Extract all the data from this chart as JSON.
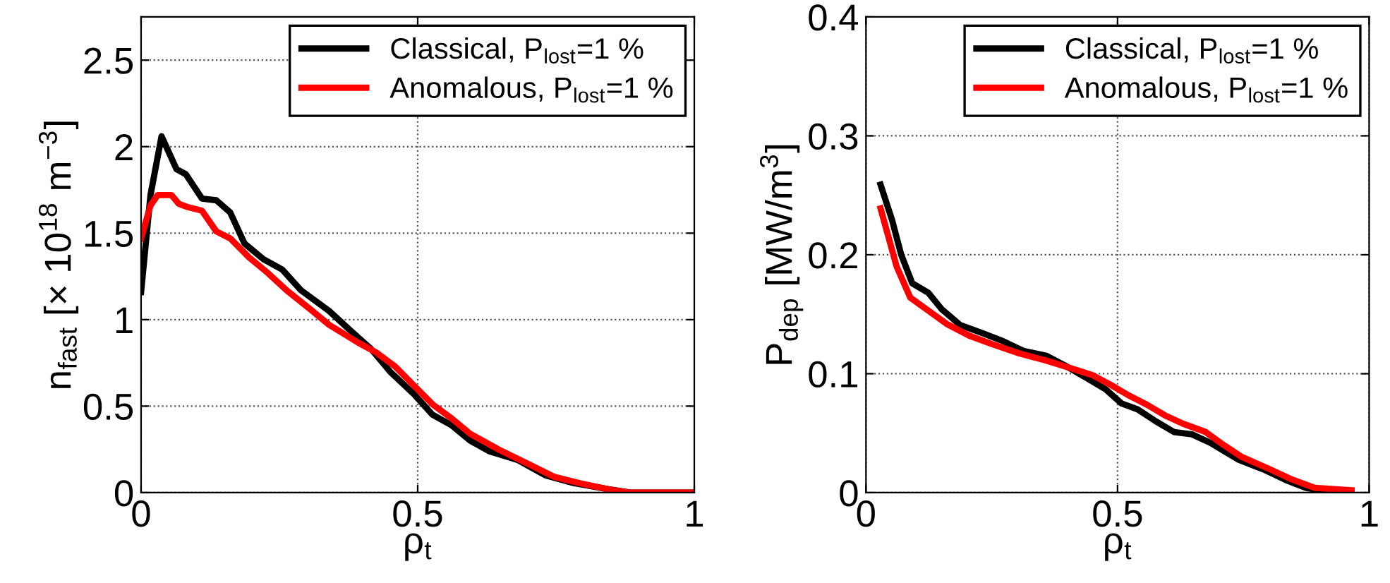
{
  "chart_data": [
    {
      "type": "line",
      "xlabel": "ρ$_{t}$",
      "ylabel": "n$_{fast}$ [× 10$^{18}$ m$^{−3}$]",
      "xlim": [
        0,
        1
      ],
      "xticks": [
        0,
        0.5,
        1
      ],
      "ylim": [
        0,
        2.75
      ],
      "yticks": [
        0,
        0.5,
        1,
        1.5,
        2,
        2.5
      ],
      "grid": true,
      "legend": "top right",
      "series": [
        {
          "name": "Classical, P$_{lost}$=1 %",
          "color": "#000000",
          "x": [
            0,
            0.017,
            0.037,
            0.064,
            0.081,
            0.11,
            0.136,
            0.161,
            0.187,
            0.221,
            0.255,
            0.289,
            0.34,
            0.374,
            0.416,
            0.45,
            0.493,
            0.527,
            0.561,
            0.595,
            0.629,
            0.68,
            0.731,
            0.782,
            0.841,
            0.884,
            1
          ],
          "values": [
            1.16,
            1.72,
            2.06,
            1.87,
            1.84,
            1.7,
            1.69,
            1.62,
            1.44,
            1.35,
            1.29,
            1.17,
            1.05,
            0.95,
            0.83,
            0.7,
            0.57,
            0.45,
            0.39,
            0.3,
            0.24,
            0.19,
            0.1,
            0.055,
            0.022,
            0,
            0
          ]
        },
        {
          "name": "Anomalous, P$_{lost}$=1 %",
          "color": "#ff0000",
          "x": [
            0,
            0.017,
            0.03,
            0.055,
            0.068,
            0.085,
            0.11,
            0.136,
            0.161,
            0.195,
            0.229,
            0.263,
            0.306,
            0.34,
            0.391,
            0.425,
            0.459,
            0.493,
            0.527,
            0.561,
            0.595,
            0.646,
            0.697,
            0.748,
            0.799,
            0.85,
            0.884,
            1
          ],
          "values": [
            1.47,
            1.66,
            1.72,
            1.72,
            1.67,
            1.65,
            1.63,
            1.51,
            1.47,
            1.36,
            1.27,
            1.17,
            1.06,
            0.97,
            0.87,
            0.81,
            0.73,
            0.62,
            0.51,
            0.43,
            0.34,
            0.25,
            0.17,
            0.09,
            0.05,
            0.016,
            0,
            0
          ]
        }
      ]
    },
    {
      "type": "line",
      "xlabel": "ρ$_{t}$",
      "ylabel": "P$_{dep}$ [MW/m$^{3}$]",
      "xlim": [
        0,
        1
      ],
      "xticks": [
        0,
        0.5,
        1
      ],
      "ylim": [
        0,
        0.4
      ],
      "yticks": [
        0,
        0.1,
        0.2,
        0.3,
        0.4
      ],
      "grid": true,
      "legend": "top right",
      "series": [
        {
          "name": "Classical, P$_{lost}$=1 %",
          "color": "#000000",
          "x": [
            0.029,
            0.052,
            0.07,
            0.092,
            0.124,
            0.151,
            0.187,
            0.232,
            0.269,
            0.314,
            0.359,
            0.395,
            0.44,
            0.476,
            0.508,
            0.54,
            0.576,
            0.612,
            0.648,
            0.684,
            0.739,
            0.793,
            0.838,
            0.874,
            0.901,
            0.965
          ],
          "values": [
            0.259,
            0.229,
            0.2,
            0.176,
            0.168,
            0.154,
            0.141,
            0.134,
            0.128,
            0.119,
            0.115,
            0.107,
            0.096,
            0.087,
            0.075,
            0.07,
            0.06,
            0.051,
            0.049,
            0.042,
            0.028,
            0.019,
            0.01,
            0.004,
            0.002,
            0.001
          ]
        },
        {
          "name": "Anomalous, P$_{lost}$=1 %",
          "color": "#ff0000",
          "x": [
            0.029,
            0.061,
            0.088,
            0.124,
            0.16,
            0.205,
            0.25,
            0.305,
            0.359,
            0.404,
            0.449,
            0.485,
            0.521,
            0.558,
            0.594,
            0.63,
            0.675,
            0.711,
            0.747,
            0.801,
            0.847,
            0.892,
            0.965
          ],
          "values": [
            0.239,
            0.19,
            0.164,
            0.153,
            0.142,
            0.132,
            0.125,
            0.117,
            0.111,
            0.105,
            0.099,
            0.091,
            0.082,
            0.074,
            0.065,
            0.058,
            0.051,
            0.04,
            0.03,
            0.02,
            0.011,
            0.004,
            0.002
          ]
        }
      ]
    }
  ]
}
